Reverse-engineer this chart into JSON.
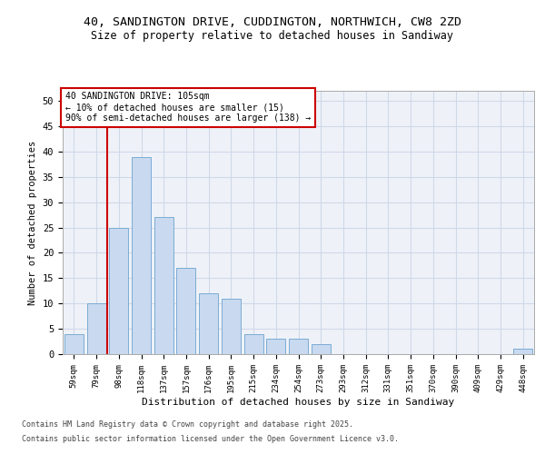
{
  "title_line1": "40, SANDINGTON DRIVE, CUDDINGTON, NORTHWICH, CW8 2ZD",
  "title_line2": "Size of property relative to detached houses in Sandiway",
  "xlabel": "Distribution of detached houses by size in Sandiway",
  "ylabel": "Number of detached properties",
  "categories": [
    "59sqm",
    "79sqm",
    "98sqm",
    "118sqm",
    "137sqm",
    "157sqm",
    "176sqm",
    "195sqm",
    "215sqm",
    "234sqm",
    "254sqm",
    "273sqm",
    "293sqm",
    "312sqm",
    "331sqm",
    "351sqm",
    "370sqm",
    "390sqm",
    "409sqm",
    "429sqm",
    "448sqm"
  ],
  "values": [
    4,
    10,
    25,
    39,
    27,
    17,
    12,
    11,
    4,
    3,
    3,
    2,
    0,
    0,
    0,
    0,
    0,
    0,
    0,
    0,
    1
  ],
  "bar_color": "#c9d9f0",
  "bar_edge_color": "#7bacd4",
  "grid_color": "#d0d8e8",
  "background_color": "#eef2f8",
  "vline_x": 1.5,
  "vline_color": "#cc0000",
  "annotation_text": "40 SANDINGTON DRIVE: 105sqm\n← 10% of detached houses are smaller (15)\n90% of semi-detached houses are larger (138) →",
  "annotation_box_color": "#ffffff",
  "annotation_box_edge": "#cc0000",
  "ylim": [
    0,
    52
  ],
  "yticks": [
    0,
    5,
    10,
    15,
    20,
    25,
    30,
    35,
    40,
    45,
    50
  ],
  "footer_line1": "Contains HM Land Registry data © Crown copyright and database right 2025.",
  "footer_line2": "Contains public sector information licensed under the Open Government Licence v3.0."
}
